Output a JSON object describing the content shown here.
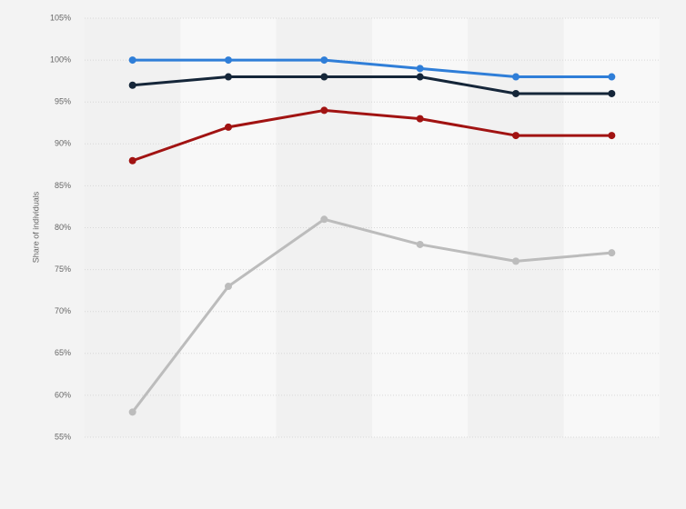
{
  "chart_data": {
    "type": "line",
    "y_label": "Share of individuals",
    "categories": [
      null,
      null,
      null,
      null,
      null,
      null
    ],
    "series": [
      {
        "color": "#2f7ed8",
        "values": [
          100,
          100,
          100,
          99,
          98,
          98
        ]
      },
      {
        "color": "#152639",
        "values": [
          97,
          98,
          98,
          98,
          96,
          96
        ]
      },
      {
        "color": "#a11312",
        "values": [
          88,
          92,
          94,
          93,
          91,
          91
        ]
      },
      {
        "color": "#bcbcbc",
        "values": [
          58,
          73,
          81,
          78,
          76,
          77
        ]
      }
    ],
    "ylim": [
      55,
      105
    ],
    "yticks": [
      {
        "value": 55,
        "label": "55%"
      },
      {
        "value": 60,
        "label": "60%"
      },
      {
        "value": 65,
        "label": "65%"
      },
      {
        "value": 70,
        "label": "70%"
      },
      {
        "value": 75,
        "label": "75%"
      },
      {
        "value": 80,
        "label": "80%"
      },
      {
        "value": 85,
        "label": "85%"
      },
      {
        "value": 90,
        "label": "90%"
      },
      {
        "value": 95,
        "label": "95%"
      },
      {
        "value": 100,
        "label": "100%"
      },
      {
        "value": 105,
        "label": "105%"
      }
    ],
    "grid": true
  }
}
